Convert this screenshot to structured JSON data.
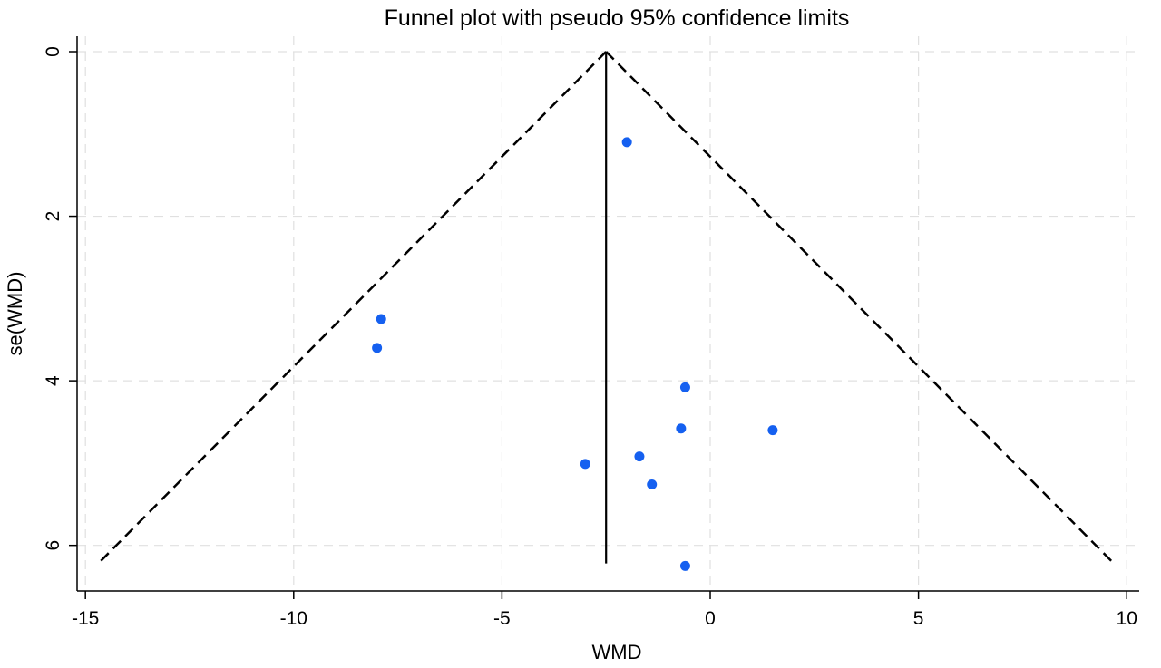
{
  "chart_data": {
    "type": "scatter",
    "title": "Funnel plot with pseudo 95% confidence limits",
    "xlabel": "WMD",
    "ylabel": "se(WMD)",
    "xlim": [
      -15.2,
      10.3
    ],
    "ylim": [
      0,
      6.4
    ],
    "y_inverted": true,
    "grid": true,
    "x_ticks": [
      {
        "value": -15,
        "label": "-15"
      },
      {
        "value": -10,
        "label": "-10"
      },
      {
        "value": -5,
        "label": "-5"
      },
      {
        "value": 0,
        "label": "0"
      },
      {
        "value": 5,
        "label": "5"
      },
      {
        "value": 10,
        "label": "10"
      }
    ],
    "y_ticks": [
      {
        "value": 0,
        "label": "0"
      },
      {
        "value": 2,
        "label": "2"
      },
      {
        "value": 4,
        "label": "4"
      },
      {
        "value": 6,
        "label": "6"
      }
    ],
    "pooled_estimate": -2.5,
    "funnel_max_se": 6.22,
    "points": [
      {
        "x": -2.0,
        "y": 1.1
      },
      {
        "x": -7.9,
        "y": 3.25
      },
      {
        "x": -8.0,
        "y": 3.6
      },
      {
        "x": -0.6,
        "y": 4.08
      },
      {
        "x": -0.7,
        "y": 4.58
      },
      {
        "x": 1.5,
        "y": 4.6
      },
      {
        "x": -1.7,
        "y": 4.92
      },
      {
        "x": -3.0,
        "y": 5.01
      },
      {
        "x": -1.4,
        "y": 5.26
      },
      {
        "x": -0.6,
        "y": 6.25
      }
    ],
    "colors": {
      "points": "#1560f0",
      "lines": "#000000",
      "grid": "#e0e0e0"
    }
  }
}
